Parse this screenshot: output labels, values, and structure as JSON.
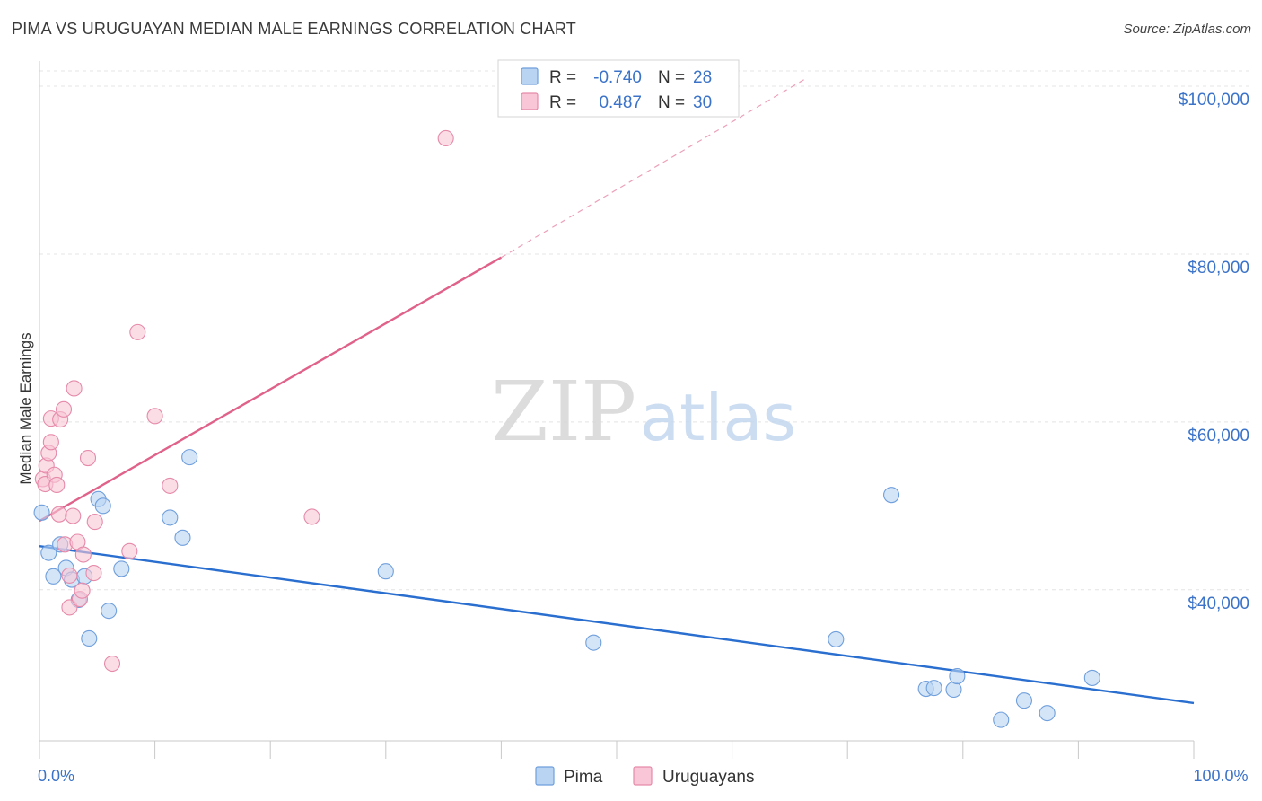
{
  "title": "PIMA VS URUGUAYAN MEDIAN MALE EARNINGS CORRELATION CHART",
  "source": "Source: ZipAtlas.com",
  "colors": {
    "pima_fill": "#b9d3f3",
    "pima_stroke": "#6f9fdc",
    "pima_line": "#2a6fd0",
    "uru_fill": "#f8c6d6",
    "uru_stroke": "#e68aaa",
    "uru_line": "#e0628a",
    "grid": "#e4e4e4",
    "tick_text": "#3b73c8"
  },
  "watermark": {
    "zip": "ZIP",
    "atlas": "atlas"
  },
  "legend": {
    "rows": [
      {
        "r_label": "R =",
        "r_value": "-0.740",
        "n_label": "N =",
        "n_value": "28"
      },
      {
        "r_label": "R =",
        "r_value": "0.487",
        "n_label": "N =",
        "n_value": "30"
      }
    ]
  },
  "chart_data": {
    "type": "scatter",
    "title": "PIMA VS URUGUAYAN MEDIAN MALE EARNINGS CORRELATION CHART",
    "xlabel": "",
    "ylabel": "Median Male Earnings",
    "xlim": [
      0,
      100
    ],
    "ylim": [
      22000,
      103000
    ],
    "y_ticks": [
      {
        "value": 40000,
        "label": "$40,000"
      },
      {
        "value": 60000,
        "label": "$60,000"
      },
      {
        "value": 80000,
        "label": "$80,000"
      },
      {
        "value": 100000,
        "label": "$100,000"
      }
    ],
    "x_tick_labels": [
      {
        "value": 0,
        "label": "0.0%"
      },
      {
        "value": 100,
        "label": "100.0%"
      }
    ],
    "x_minor_ticks": [
      0,
      10,
      20,
      30,
      40,
      50,
      60,
      70,
      80,
      90,
      100
    ],
    "series": [
      {
        "name": "Pima",
        "points": [
          [
            0.2,
            49200
          ],
          [
            0.8,
            44400
          ],
          [
            1.2,
            41600
          ],
          [
            1.8,
            45400
          ],
          [
            2.3,
            42600
          ],
          [
            2.8,
            41200
          ],
          [
            3.4,
            38800
          ],
          [
            3.9,
            41600
          ],
          [
            4.3,
            34200
          ],
          [
            5.1,
            50800
          ],
          [
            5.5,
            50000
          ],
          [
            6.0,
            37500
          ],
          [
            7.1,
            42500
          ],
          [
            11.3,
            48600
          ],
          [
            12.4,
            46200
          ],
          [
            13.0,
            55800
          ],
          [
            30.0,
            42200
          ],
          [
            48.0,
            33700
          ],
          [
            69.0,
            34100
          ],
          [
            73.8,
            51300
          ],
          [
            76.8,
            28200
          ],
          [
            77.5,
            28300
          ],
          [
            79.2,
            28100
          ],
          [
            79.5,
            29700
          ],
          [
            83.3,
            24500
          ],
          [
            85.3,
            26800
          ],
          [
            87.3,
            25300
          ],
          [
            91.2,
            29500
          ]
        ]
      },
      {
        "name": "Uruguayans",
        "points": [
          [
            0.3,
            53200
          ],
          [
            0.5,
            52600
          ],
          [
            0.6,
            54800
          ],
          [
            0.8,
            56300
          ],
          [
            1.0,
            57600
          ],
          [
            1.0,
            60400
          ],
          [
            1.3,
            53700
          ],
          [
            1.5,
            52500
          ],
          [
            1.7,
            49000
          ],
          [
            1.8,
            60300
          ],
          [
            2.1,
            61500
          ],
          [
            2.2,
            45400
          ],
          [
            2.6,
            41700
          ],
          [
            2.6,
            37900
          ],
          [
            2.9,
            48800
          ],
          [
            3.0,
            64000
          ],
          [
            3.3,
            45700
          ],
          [
            3.5,
            38900
          ],
          [
            3.7,
            39900
          ],
          [
            3.8,
            44200
          ],
          [
            4.2,
            55700
          ],
          [
            4.7,
            42000
          ],
          [
            4.8,
            48100
          ],
          [
            6.3,
            31200
          ],
          [
            7.8,
            44600
          ],
          [
            8.5,
            70700
          ],
          [
            10.0,
            60700
          ],
          [
            11.3,
            52400
          ],
          [
            23.6,
            48700
          ],
          [
            35.2,
            93800
          ]
        ]
      }
    ],
    "trend_lines": [
      {
        "series": "Pima",
        "x_start": 0,
        "y_start": 45200,
        "x_end": 100,
        "y_end": 26500
      },
      {
        "series": "Uruguayans",
        "x_start": 0,
        "y_start": 48200,
        "x_end": 40,
        "y_end": 79600,
        "dashed_to_x": 66.5,
        "dashed_to_y": 101000
      }
    ]
  }
}
